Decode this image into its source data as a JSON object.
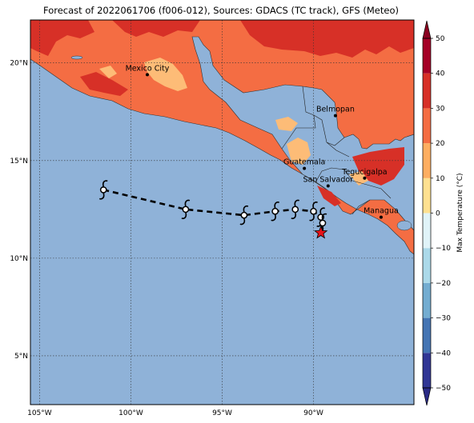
{
  "title": "Forecast of 2022061706 (f006-012), Sources: GDACS (TC track), GFS (Meteo)",
  "extent": {
    "lon_min": -105.5,
    "lon_max": -84.5,
    "lat_min": 2.5,
    "lat_max": 22.2
  },
  "lon_ticks": [
    {
      "value": -105,
      "label": "105°W"
    },
    {
      "value": -100,
      "label": "100°W"
    },
    {
      "value": -95,
      "label": "95°W"
    },
    {
      "value": -90,
      "label": "90°W"
    }
  ],
  "lat_ticks": [
    {
      "value": 20,
      "label": "20°N"
    },
    {
      "value": 15,
      "label": "15°N"
    },
    {
      "value": 10,
      "label": "10°N"
    },
    {
      "value": 5,
      "label": "5°N"
    }
  ],
  "cities": [
    {
      "name": "Mexico City",
      "lon": -99.1,
      "lat": 19.4
    },
    {
      "name": "Belmopan",
      "lon": -88.8,
      "lat": 17.3
    },
    {
      "name": "Guatemala",
      "lon": -90.5,
      "lat": 14.6
    },
    {
      "name": "San Salvador",
      "lon": -89.2,
      "lat": 13.7
    },
    {
      "name": "Tegucigalpa",
      "lon": -87.2,
      "lat": 14.1
    },
    {
      "name": "Managua",
      "lon": -86.3,
      "lat": 12.1
    }
  ],
  "track": [
    {
      "lon": -101.5,
      "lat": 13.5
    },
    {
      "lon": -97.0,
      "lat": 12.5
    },
    {
      "lon": -93.8,
      "lat": 12.2
    },
    {
      "lon": -92.1,
      "lat": 12.4
    },
    {
      "lon": -91.0,
      "lat": 12.5
    },
    {
      "lon": -90.0,
      "lat": 12.4
    },
    {
      "lon": -89.6,
      "lat": 12.1
    },
    {
      "lon": -89.5,
      "lat": 11.8
    }
  ],
  "current_position": {
    "lon": -89.6,
    "lat": 11.3
  },
  "colorbar": {
    "label": "Max Temperature (°C)",
    "ticks": [
      -50,
      -40,
      -30,
      -20,
      -10,
      0,
      10,
      20,
      30,
      40,
      50
    ],
    "bands": [
      {
        "from": -50,
        "to": -40,
        "color": "#313695"
      },
      {
        "from": -40,
        "to": -30,
        "color": "#4575b4"
      },
      {
        "from": -30,
        "to": -20,
        "color": "#74add1"
      },
      {
        "from": -20,
        "to": -10,
        "color": "#abd9e9"
      },
      {
        "from": -10,
        "to": 0,
        "color": "#e0f3f8"
      },
      {
        "from": 0,
        "to": 10,
        "color": "#fee090"
      },
      {
        "from": 10,
        "to": 20,
        "color": "#fdae61"
      },
      {
        "from": 20,
        "to": 30,
        "color": "#f46d43"
      },
      {
        "from": 30,
        "to": 40,
        "color": "#d73027"
      },
      {
        "from": 40,
        "to": 50,
        "color": "#a50026"
      }
    ],
    "extend_low_color": "#2a2a85",
    "extend_high_color": "#8b0020"
  },
  "colors": {
    "ocean": "#8fb2d8",
    "land": "#f46d43",
    "land_hot": "#d73027",
    "land_warm": "#fdbc77",
    "track": "#000000",
    "current_marker": "#e8141a"
  }
}
